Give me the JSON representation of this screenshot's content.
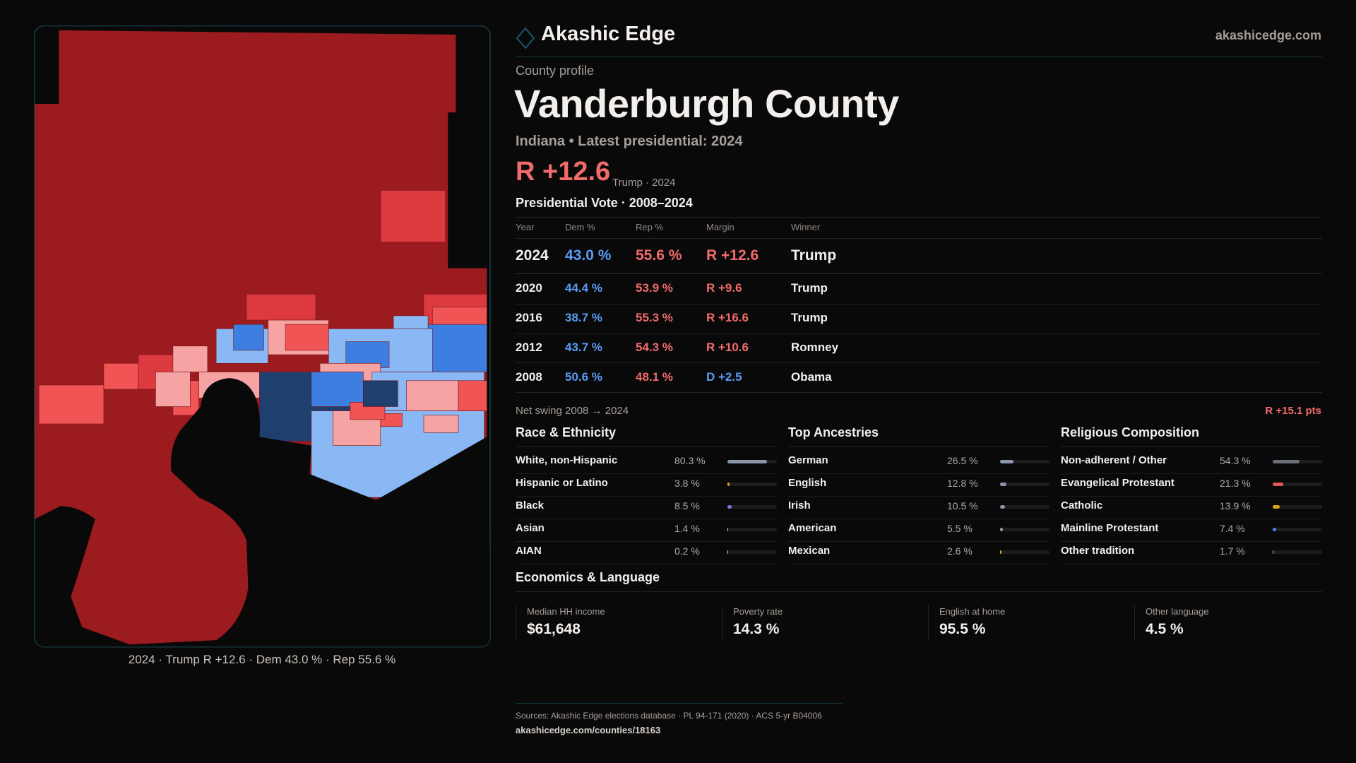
{
  "brand": {
    "name": "Akashic Edge",
    "site": "akashicedge.com"
  },
  "profile": {
    "kicker": "County profile",
    "title": "Vanderburgh County",
    "subtitle": "Indiana • Latest presidential: 2024",
    "margin": "R +12.6",
    "margin_note": "Trump · 2024"
  },
  "map": {
    "caption": "2024 · Trump R +12.6 · Dem 43.0 % · Rep 55.6 %",
    "colors": {
      "safe_r": "#9b1b1e",
      "likely_r": "#dc3a3f",
      "lean_r": "#f05454",
      "tilt_r": "#f5a3a3",
      "tilt_d": "#8ab8f5",
      "lean_d": "#3d7fe0",
      "safe_d": "#1f3f6e"
    }
  },
  "vote": {
    "title": "Presidential Vote · 2008–2024",
    "headers": [
      "Year",
      "Dem %",
      "Rep %",
      "Margin",
      "Winner"
    ],
    "rows": [
      {
        "year": "2024",
        "dem": "43.0 %",
        "rep": "55.6 %",
        "margin": "R +12.6",
        "winner": "Trump",
        "party": "R"
      },
      {
        "year": "2020",
        "dem": "44.4 %",
        "rep": "53.9 %",
        "margin": "R +9.6",
        "winner": "Trump",
        "party": "R"
      },
      {
        "year": "2016",
        "dem": "38.7 %",
        "rep": "55.3 %",
        "margin": "R +16.6",
        "winner": "Trump",
        "party": "R"
      },
      {
        "year": "2012",
        "dem": "43.7 %",
        "rep": "54.3 %",
        "margin": "R +10.6",
        "winner": "Romney",
        "party": "R"
      },
      {
        "year": "2008",
        "dem": "50.6 %",
        "rep": "48.1 %",
        "margin": "D +2.5",
        "winner": "Obama",
        "party": "D"
      }
    ],
    "swing_label": "Net swing 2008 → 2024",
    "swing_value": "R +15.1 pts"
  },
  "sections": [
    {
      "title": "Race & Ethnicity",
      "items": [
        {
          "label": "White, non-Hispanic",
          "value": "80.3 %",
          "pct": 80.3,
          "color": "#8b97a8"
        },
        {
          "label": "Hispanic or Latino",
          "value": "3.8 %",
          "pct": 3.8,
          "color": "#e0962a"
        },
        {
          "label": "Black",
          "value": "8.5 %",
          "pct": 8.5,
          "color": "#8a6fe0"
        },
        {
          "label": "Asian",
          "value": "1.4 %",
          "pct": 1.4,
          "color": "#c8c8c8"
        },
        {
          "label": "AIAN",
          "value": "0.2 %",
          "pct": 0.2,
          "color": "#c8c8c8"
        }
      ]
    },
    {
      "title": "Top Ancestries",
      "items": [
        {
          "label": "German",
          "value": "26.5 %",
          "pct": 26.5,
          "color": "#8b97a8"
        },
        {
          "label": "English",
          "value": "12.8 %",
          "pct": 12.8,
          "color": "#8b97a8"
        },
        {
          "label": "Irish",
          "value": "10.5 %",
          "pct": 10.5,
          "color": "#8b97a8"
        },
        {
          "label": "American",
          "value": "5.5 %",
          "pct": 5.5,
          "color": "#8b97a8"
        },
        {
          "label": "Mexican",
          "value": "2.6 %",
          "pct": 2.6,
          "color": "#e0962a"
        }
      ]
    },
    {
      "title": "Religious Composition",
      "items": [
        {
          "label": "Non-adherent / Other",
          "value": "54.3 %",
          "pct": 54.3,
          "color": "#6b6f7a"
        },
        {
          "label": "Evangelical Protestant",
          "value": "21.3 %",
          "pct": 21.3,
          "color": "#e0595f"
        },
        {
          "label": "Catholic",
          "value": "13.9 %",
          "pct": 13.9,
          "color": "#e0a21a"
        },
        {
          "label": "Mainline Protestant",
          "value": "7.4 %",
          "pct": 7.4,
          "color": "#4a8ae8"
        },
        {
          "label": "Other tradition",
          "value": "1.7 %",
          "pct": 1.7,
          "color": "#c8c8c8"
        }
      ]
    }
  ],
  "economics": {
    "title": "Economics & Language",
    "cards": [
      {
        "label": "Median HH income",
        "value": "$61,648"
      },
      {
        "label": "Poverty rate",
        "value": "14.3 %"
      },
      {
        "label": "English at home",
        "value": "95.5 %"
      },
      {
        "label": "Other language",
        "value": "4.5 %"
      }
    ]
  },
  "footer": {
    "sources": "Sources: Akashic Edge elections database · PL 94-171 (2020) · ACS 5-yr B04006",
    "url": "akashicedge.com/counties/18163"
  },
  "colors": {
    "rep": "#f26b6b",
    "dem": "#5a9cf5",
    "accent": "#1a5a66"
  }
}
